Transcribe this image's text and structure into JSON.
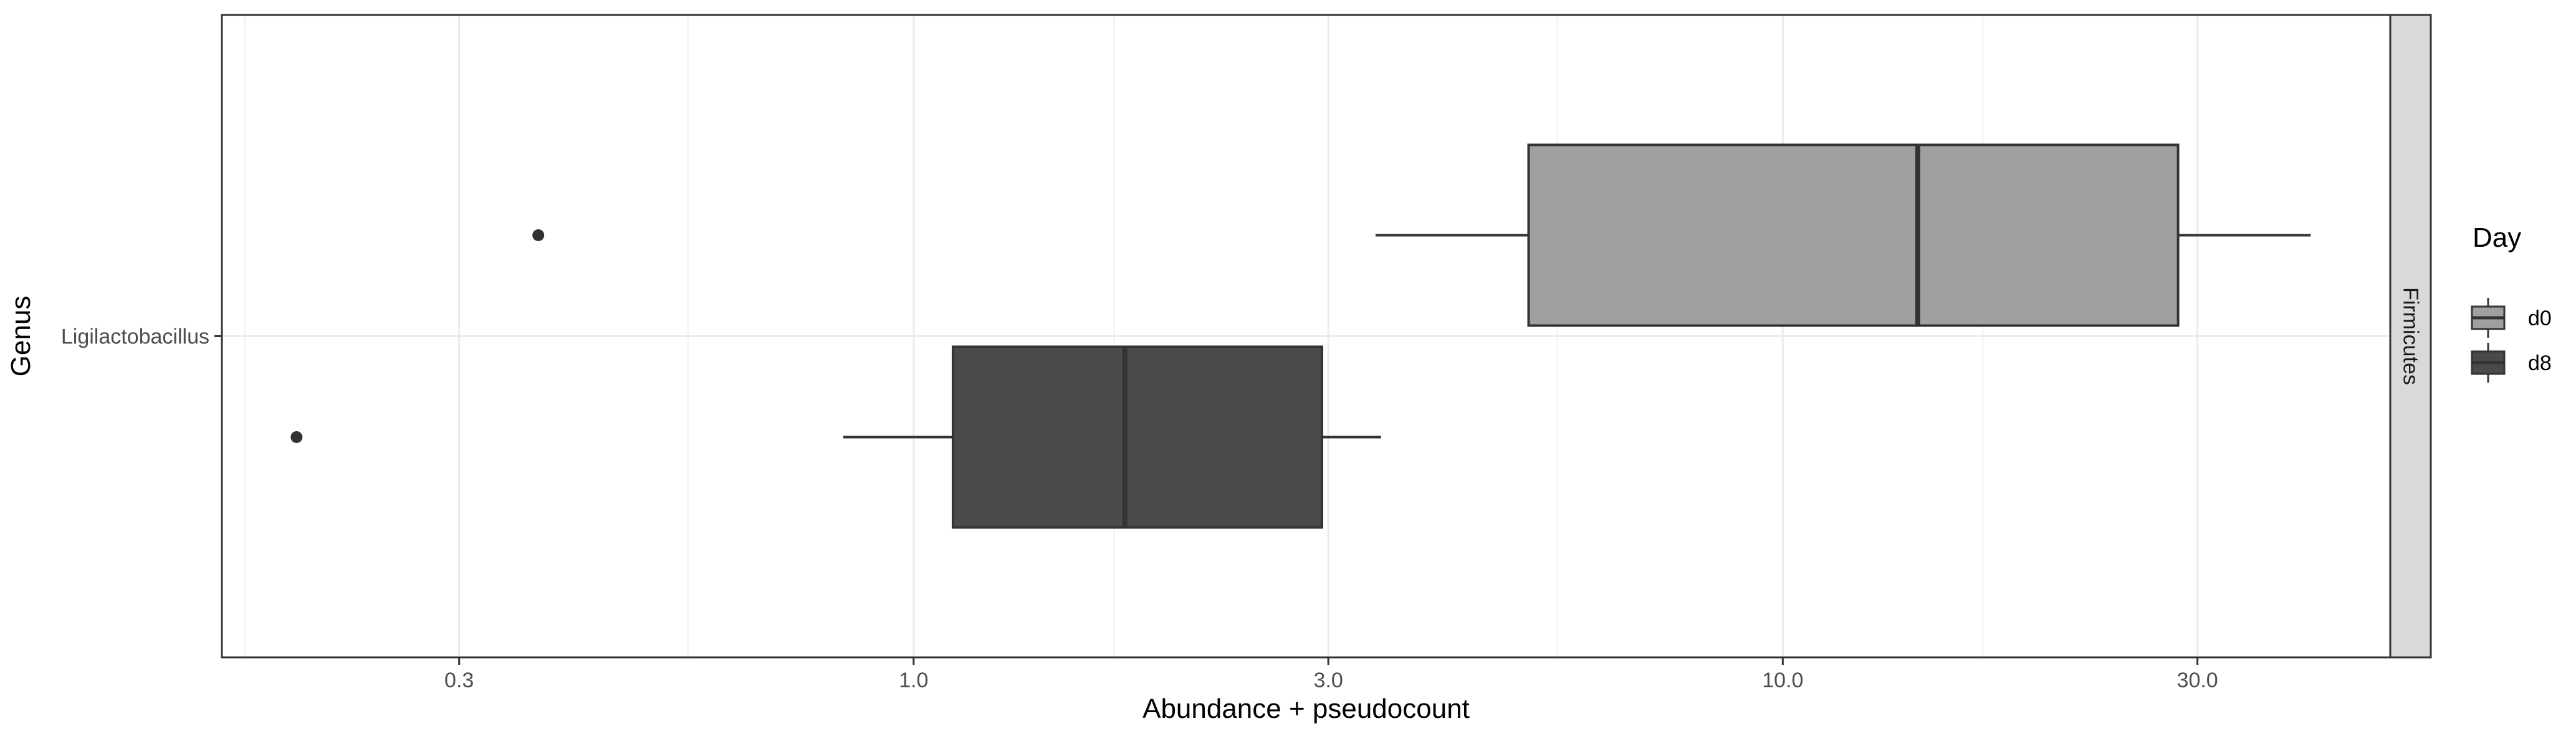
{
  "chart_data": {
    "type": "boxplot",
    "orientation": "horizontal",
    "xlabel": "Abundance + pseudocount",
    "ylabel": "Genus",
    "x_scale": "log10",
    "xlim": [
      0.16,
      50
    ],
    "x_ticks": [
      0.3,
      1.0,
      3.0,
      10.0,
      30.0
    ],
    "x_tick_labels": [
      "0.3",
      "1.0",
      "3.0",
      "10.0",
      "30.0"
    ],
    "x_minor_ticks": [
      0.17,
      0.55,
      1.7,
      5.5,
      17
    ],
    "categories": [
      "Ligilactobacillus"
    ],
    "facet_label": "Firmicutes",
    "legend": {
      "title": "Day",
      "placement": "right"
    },
    "series": [
      {
        "name": "d0",
        "color": "#a0a0a0",
        "category": "Ligilactobacillus",
        "whisker_low": 3.4,
        "q1": 5.1,
        "median": 14.3,
        "q3": 28.5,
        "whisker_high": 40.5,
        "outliers": [
          0.37
        ]
      },
      {
        "name": "d8",
        "color": "#4a4a4a",
        "category": "Ligilactobacillus",
        "whisker_low": 0.83,
        "q1": 1.11,
        "median": 1.75,
        "q3": 2.95,
        "whisker_high": 3.45,
        "outliers": [
          0.195
        ]
      }
    ],
    "grid": true,
    "theme": "bw"
  }
}
